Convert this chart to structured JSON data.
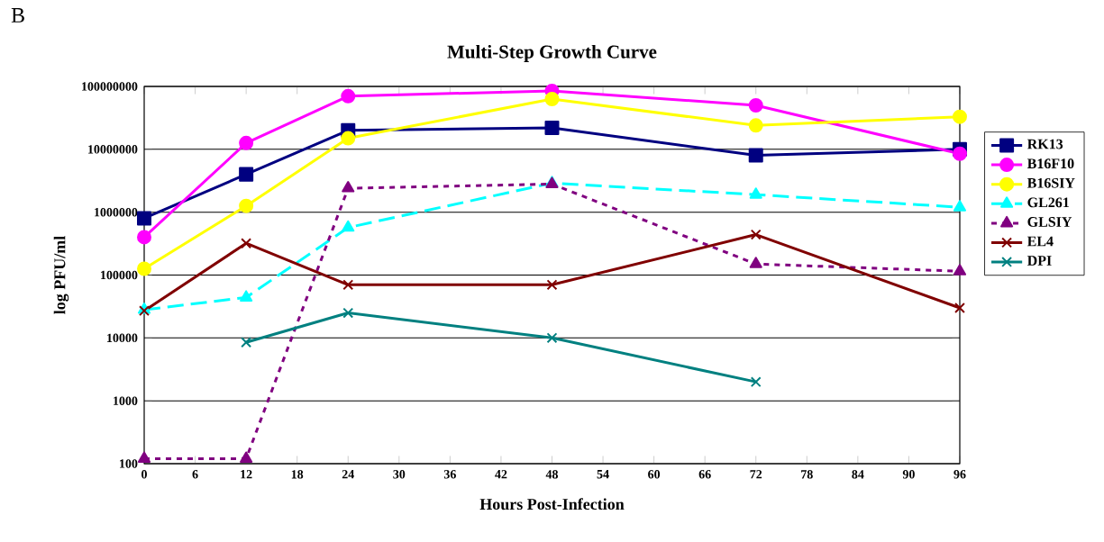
{
  "chart_data": {
    "type": "line",
    "title": "Multi-Step Growth Curve",
    "xlabel": "Hours Post-Infection",
    "ylabel": "log PFU/ml",
    "annotations": [
      "B"
    ],
    "x": [
      0,
      12,
      24,
      48,
      72,
      96
    ],
    "xlim": [
      0,
      96
    ],
    "xticks": [
      0,
      6,
      12,
      18,
      24,
      30,
      36,
      42,
      48,
      54,
      60,
      66,
      72,
      78,
      84,
      90,
      96
    ],
    "ylim": [
      100,
      100000000
    ],
    "yticks": [
      100,
      1000,
      10000,
      100000,
      1000000,
      10000000,
      100000000
    ],
    "log": "y",
    "grid": "y",
    "legend": "right",
    "series": [
      {
        "name": "RK13",
        "color": "#000080",
        "marker": "square",
        "line_style": "solid",
        "values": [
          800000,
          4000000,
          20000000,
          22000000,
          8000000,
          10000000
        ]
      },
      {
        "name": "B16F10",
        "color": "#ff00ff",
        "marker": "circle",
        "line_style": "solid",
        "values": [
          400000,
          12600000,
          70000000,
          85000000,
          50000000,
          8500000
        ]
      },
      {
        "name": "B16SIY",
        "color": "#ffff00",
        "marker": "circle",
        "line_style": "solid",
        "values": [
          126000,
          1260000,
          15000000,
          63000000,
          24000000,
          33000000
        ]
      },
      {
        "name": "GL261",
        "color": "#00ffff",
        "marker": "triangle",
        "line_style": "dashed",
        "values": [
          28000,
          44000,
          570000,
          2900000,
          1900000,
          1200000
        ]
      },
      {
        "name": "GLSIY",
        "color": "#800080",
        "marker": "triangle",
        "line_style": "dotted",
        "values": [
          120,
          120,
          2400000,
          2800000,
          150000,
          115000
        ]
      },
      {
        "name": "EL4",
        "color": "#800000",
        "marker": "cross",
        "line_style": "solid",
        "values": [
          27000,
          320000,
          70000,
          70000,
          440000,
          30000
        ]
      },
      {
        "name": "DPI",
        "color": "#008080",
        "marker": "cross",
        "line_style": "solid",
        "values": [
          null,
          8500,
          25000,
          10000,
          2000,
          null
        ]
      }
    ]
  }
}
